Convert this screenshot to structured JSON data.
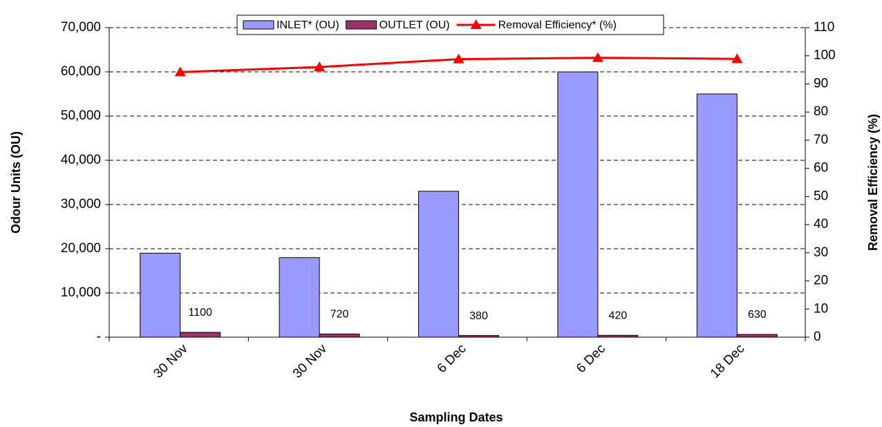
{
  "chart_data": {
    "type": "bar",
    "x_label": "Sampling Dates",
    "y_label": "Odour Units (OU)",
    "y2_label": "Removal Efficiency (%)",
    "categories": [
      "30 Nov",
      "30 Nov",
      "6 Dec",
      "6 Dec",
      "18 Dec"
    ],
    "series": [
      {
        "name": "INLET* (OU)",
        "color": "#9999ff",
        "type": "bar",
        "values": [
          19000,
          18000,
          33000,
          60000,
          55000
        ]
      },
      {
        "name": "OUTLET (OU)",
        "color": "#993366",
        "type": "bar",
        "values": [
          1100,
          720,
          380,
          420,
          630
        ],
        "show_labels": true
      },
      {
        "name": "Removal Efficiency* (%)",
        "color": "#ff0000",
        "type": "line",
        "axis": "y2",
        "values": [
          94.2,
          96.0,
          98.8,
          99.3,
          98.9
        ]
      }
    ],
    "ylim": [
      0,
      70000
    ],
    "yticks": [
      {
        "value": 0,
        "label": "-"
      },
      {
        "value": 10000,
        "label": "10,000"
      },
      {
        "value": 20000,
        "label": "20,000"
      },
      {
        "value": 30000,
        "label": "30,000"
      },
      {
        "value": 40000,
        "label": "40,000"
      },
      {
        "value": 50000,
        "label": "50,000"
      },
      {
        "value": 60000,
        "label": "60,000"
      },
      {
        "value": 70000,
        "label": "70,000"
      }
    ],
    "y2lim": [
      0,
      110
    ],
    "y2ticks": [
      0,
      10,
      20,
      30,
      40,
      50,
      60,
      70,
      80,
      90,
      100,
      110
    ],
    "grid": true,
    "legend": "top"
  }
}
